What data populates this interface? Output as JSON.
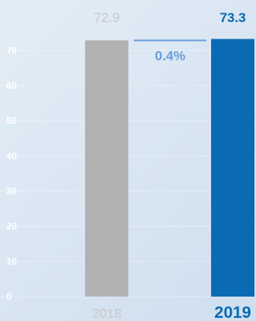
{
  "chart_data": {
    "type": "bar",
    "categories": [
      "2018",
      "2019"
    ],
    "values": [
      72.9,
      73.3
    ],
    "value_labels": [
      "72.9",
      "73.3"
    ],
    "change_label": "0.4%",
    "ylim": [
      0,
      77
    ],
    "yticks": [
      0,
      10,
      20,
      30,
      40,
      50,
      60,
      70
    ],
    "grid": true,
    "legend": "none",
    "colors": {
      "bar_2018": "#b2b2b2",
      "bar_2019": "#0a6ab3",
      "label_2018": "#c9c9c9",
      "label_2019": "#0a6ab3",
      "change": "#6a9fd8",
      "tick": "#ffffff"
    }
  }
}
